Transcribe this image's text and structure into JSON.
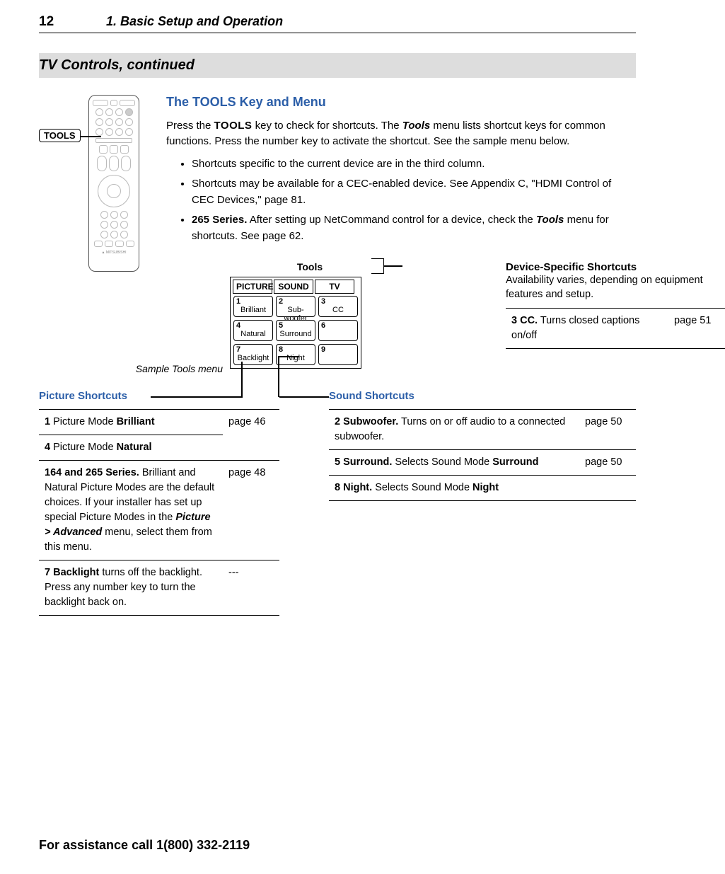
{
  "header": {
    "page_number": "12",
    "chapter_label": "1.  Basic Setup and Operation"
  },
  "section_title": "TV Controls, continued",
  "tools_callout": "TOOLS",
  "subsection_title": "The TOOLS Key and Menu",
  "intro_html": "Press the <span class='kbd'>TOOLS</span> key to check for shortcuts.  The <b><i>Tools</i></b> menu lists shortcut keys for common functions.  Press the number key to activate the shortcut.  See the sample menu below.",
  "bullets": [
    "Shortcuts specific to the current device are in the third column.",
    "Shortcuts may be available for a CEC-enabled device.  See Appendix C, \"HDMI Control of CEC Devices,\" page 81.",
    "<b>265 Series.</b>  After setting up NetCommand control for a device, check the <b><i>Tools</i></b> menu for shortcuts.  See page 62."
  ],
  "tools_menu": {
    "title": "Tools",
    "caption": "Sample Tools menu",
    "columns": [
      "PICTURE",
      "SOUND",
      "TV"
    ],
    "cells": [
      [
        {
          "num": "1",
          "lbl": "Brilliant"
        },
        {
          "num": "2",
          "lbl": "Sub-woofer"
        },
        {
          "num": "3",
          "lbl": "CC"
        }
      ],
      [
        {
          "num": "4",
          "lbl": "Natural"
        },
        {
          "num": "5",
          "lbl": "Surround"
        },
        {
          "num": "6",
          "lbl": ""
        }
      ],
      [
        {
          "num": "7",
          "lbl": "Backlight"
        },
        {
          "num": "8",
          "lbl": "Night"
        },
        {
          "num": "9",
          "lbl": ""
        }
      ]
    ]
  },
  "device_shortcuts": {
    "title": "Device-Specific Shortcuts",
    "desc": "Availability varies, depending on equipment features and setup.",
    "rows": [
      {
        "desc_html": "<b>3  CC.</b>  Turns closed captions on/off",
        "page": "page 51"
      }
    ]
  },
  "picture_shortcuts": {
    "title": "Picture Shortcuts",
    "rows": [
      {
        "desc_html": "<b>1</b>  Picture Mode <b>Brilliant</b>",
        "page": "page 46",
        "border_bottom": true
      },
      {
        "desc_html": "<b>4</b>  Picture Mode <b>Natural</b>",
        "page": "",
        "merge_up": true
      },
      {
        "desc_html": "<b>164 and 265 Series.</b>  Brilliant and Natural Picture Modes are the default choices.  If your installer has set up special Picture Modes in the <b><i>Picture &gt; Advanced</i></b> menu, select them from this menu.",
        "page": "page 48"
      },
      {
        "desc_html": "<b>7  Backlight</b> turns off the backlight.  Press any number key to turn the backlight back on.",
        "page": "---"
      }
    ]
  },
  "sound_shortcuts": {
    "title": "Sound Shortcuts",
    "rows": [
      {
        "desc_html": "<b>2  Subwoofer.</b>  Turns on or off audio to a connected subwoofer.",
        "page": "page 50"
      },
      {
        "desc_html": "<b>5  Surround.</b>  Selects Sound Mode <b>Surround</b>",
        "page": "page 50"
      },
      {
        "desc_html": "<b>8  Night.</b>  Selects Sound Mode <b>Night</b>",
        "page": ""
      }
    ]
  },
  "footer": "For assistance call 1(800) 332-2119",
  "colors": {
    "accent": "#2b5ea8",
    "section_bg": "#dddddd",
    "border": "#000000"
  }
}
